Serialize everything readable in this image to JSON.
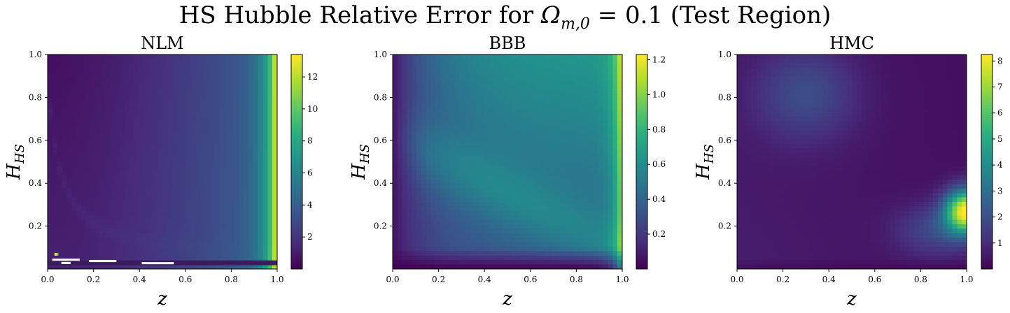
{
  "figure": {
    "suptitle_text": "HS Hubble Relative Error for Ωm,0 = 0.1 (Test Region)"
  },
  "chart_data": [
    {
      "type": "heatmap",
      "title": "NLM",
      "xlabel": "z",
      "ylabel": "H_HS",
      "xlim": [
        0.0,
        1.0
      ],
      "ylim": [
        0.0,
        1.0
      ],
      "x_ticks": [
        "0.0",
        "0.2",
        "0.4",
        "0.6",
        "0.8",
        "1.0"
      ],
      "y_ticks": [
        "0.2",
        "0.4",
        "0.6",
        "0.8",
        "1.0"
      ],
      "colorbar": {
        "min": 0.0,
        "max": 13.4,
        "ticks": [
          2,
          4,
          6,
          8,
          10,
          12
        ]
      },
      "colormap": "viridis",
      "pattern": "nlm"
    },
    {
      "type": "heatmap",
      "title": "BBB",
      "xlabel": "z",
      "ylabel": "H_HS",
      "xlim": [
        0.0,
        1.0
      ],
      "ylim": [
        0.0,
        1.0
      ],
      "x_ticks": [
        "0.0",
        "0.2",
        "0.4",
        "0.6",
        "0.8",
        "1.0"
      ],
      "y_ticks": [
        "0.2",
        "0.4",
        "0.6",
        "0.8",
        "1.0"
      ],
      "colorbar": {
        "min": 0.0,
        "max": 1.23,
        "ticks": [
          0.2,
          0.4,
          0.6,
          0.8,
          1.0,
          1.2
        ]
      },
      "colormap": "viridis",
      "pattern": "bbb"
    },
    {
      "type": "heatmap",
      "title": "HMC",
      "xlabel": "z",
      "ylabel": "H_HS",
      "xlim": [
        0.0,
        1.0
      ],
      "ylim": [
        0.0,
        1.0
      ],
      "x_ticks": [
        "0.0",
        "0.2",
        "0.4",
        "0.6",
        "0.8",
        "1.0"
      ],
      "y_ticks": [
        "0.2",
        "0.4",
        "0.6",
        "0.8",
        "1.0"
      ],
      "colorbar": {
        "min": 0.0,
        "max": 8.25,
        "ticks": [
          1,
          2,
          3,
          4,
          5,
          6,
          7,
          8
        ]
      },
      "colormap": "viridis",
      "pattern": "hmc"
    }
  ]
}
